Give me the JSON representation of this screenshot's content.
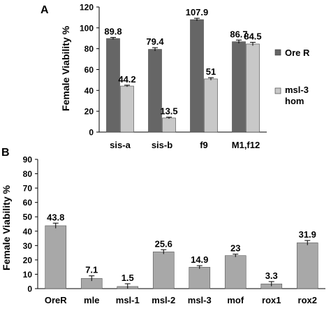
{
  "chart_data": [
    {
      "panel_label": "A",
      "type": "bar",
      "title": "",
      "xlabel": "",
      "ylabel": "Female Viability %",
      "ylim": [
        0,
        120
      ],
      "yticks": [
        0,
        20,
        40,
        60,
        80,
        100,
        120
      ],
      "grid": false,
      "legend_position": "right",
      "categories": [
        "sis-a",
        "sis-b",
        "f9",
        "M1,f12"
      ],
      "series": [
        {
          "name": "Ore R",
          "color": "#666666",
          "values": [
            89.8,
            79.4,
            107.9,
            86.7
          ],
          "labels": [
            "89.8",
            "79.4",
            "107.9",
            "86.7"
          ],
          "errors": [
            1.0,
            1.6,
            1.3,
            1.6
          ]
        },
        {
          "name": "msl-3\nhom",
          "color": "#c8c8c8",
          "values": [
            44.2,
            13.5,
            51,
            84.5
          ],
          "labels": [
            "44.2",
            "13.5",
            "51",
            "84.5"
          ],
          "errors": [
            0.8,
            0.8,
            1.2,
            1.6
          ]
        }
      ]
    },
    {
      "panel_label": "B",
      "type": "bar",
      "title": "",
      "xlabel": "",
      "ylabel": "Female Viability %",
      "ylim": [
        0,
        90
      ],
      "yticks": [
        0,
        10,
        20,
        30,
        40,
        50,
        60,
        70,
        80,
        90
      ],
      "grid": false,
      "categories": [
        "OreR",
        "mle",
        "msl-1",
        "msl-2",
        "msl-3",
        "mof",
        "rox1",
        "rox2"
      ],
      "series": [
        {
          "color": "#a8a8a8",
          "values": [
            43.8,
            7.1,
            1.5,
            25.6,
            14.9,
            23,
            3.3,
            31.9
          ],
          "labels": [
            "43.8",
            "7.1",
            "1.5",
            "25.6",
            "14.9",
            "23",
            "3.3",
            "31.9"
          ],
          "errors": [
            1.8,
            1.8,
            1.9,
            1.5,
            1.1,
            1.0,
            1.6,
            1.6
          ]
        }
      ]
    }
  ]
}
